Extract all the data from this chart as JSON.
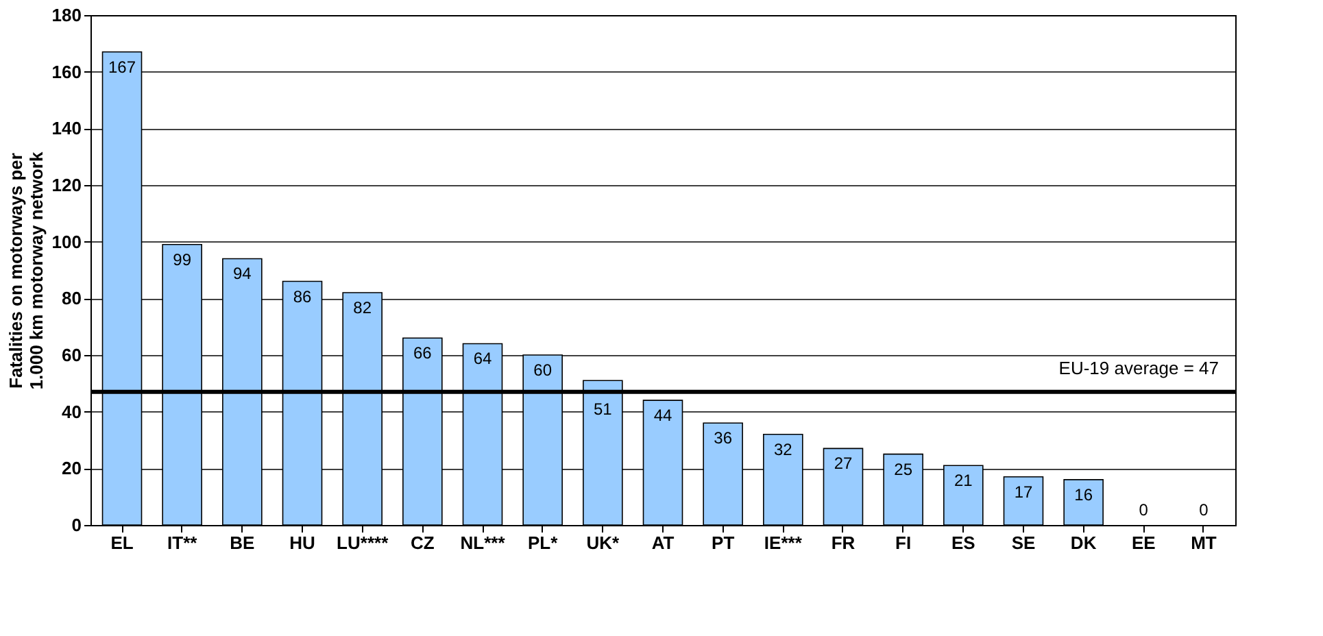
{
  "chart_data": {
    "type": "bar",
    "ylabel": "Fatalities on motorways per 1.000 km motorway network",
    "categories": [
      "EL",
      "IT**",
      "BE",
      "HU",
      "LU****",
      "CZ",
      "NL***",
      "PL*",
      "UK*",
      "AT",
      "PT",
      "IE***",
      "FR",
      "FI",
      "ES",
      "SE",
      "DK",
      "EE",
      "MT"
    ],
    "values": [
      167,
      99,
      94,
      86,
      82,
      66,
      64,
      60,
      51,
      44,
      36,
      32,
      27,
      25,
      21,
      17,
      16,
      0,
      0
    ],
    "color": "#99ccff",
    "ylim": [
      0,
      180
    ],
    "yticks": [
      0,
      20,
      40,
      60,
      80,
      100,
      120,
      140,
      160,
      180
    ],
    "grid": "y",
    "data_labels": true,
    "ref_lines": [
      {
        "axis": "y",
        "value": 47,
        "label": "EU-19 average = 47",
        "color": "#000000"
      }
    ]
  }
}
